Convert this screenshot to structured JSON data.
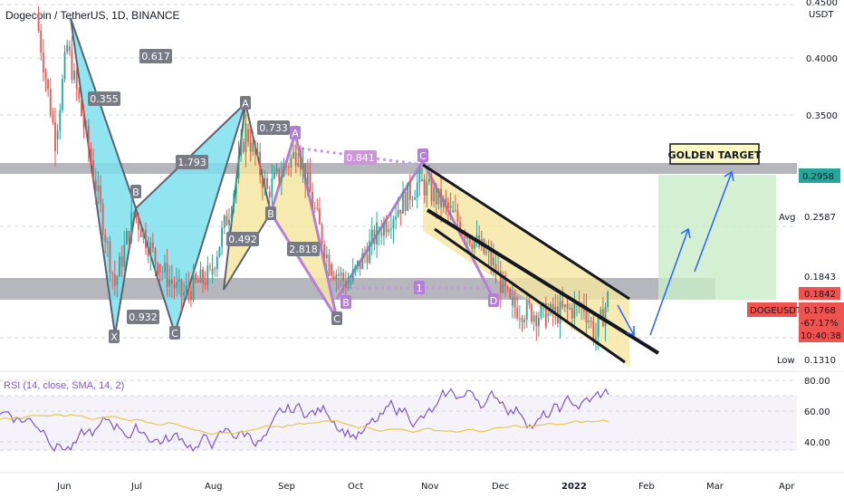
{
  "header": {
    "title": "Dogecoin / TetherUS, 1D, BINANCE"
  },
  "price_axis": {
    "currency": "USDT",
    "ticks": [
      "0.4500",
      "0.4000",
      "0.3500",
      "0.2958",
      "0.2587",
      "0.1843",
      "0.1842",
      "0.1768",
      "0.1310"
    ]
  },
  "price_tags": {
    "top": "0.2958",
    "avg_label": "Avg",
    "avg": "0.2587",
    "p1": "0.1843",
    "p2": "0.1842",
    "symbol": "DOGEUSDT",
    "last": "0.1768",
    "change": "-67.17%",
    "countdown": "10:40:38",
    "low_label": "Low",
    "low": "0.1310"
  },
  "time_axis": [
    "Jun",
    "Jul",
    "Aug",
    "Sep",
    "Oct",
    "Nov",
    "Dec",
    "2022",
    "Feb",
    "Mar",
    "Apr"
  ],
  "rsi": {
    "label": "RSI (14, close, SMA, 14, 2)",
    "ticks": [
      "80.00",
      "60.00",
      "40.00"
    ]
  },
  "annotations": {
    "golden_target": "GOLDEN TARGET",
    "ratios": [
      "0.617",
      "0.355",
      "1.793",
      "0.733",
      "0.841",
      "0.492",
      "2.818",
      "0.932"
    ],
    "points": [
      "X",
      "A",
      "B",
      "C",
      "D",
      "1"
    ]
  },
  "colors": {
    "up": "#26a69a",
    "down": "#ef5350",
    "bat": "#7ee0ee",
    "harmonic": "#f5e6a0",
    "pattern_purple": "#b47fd6",
    "zone": "#787b86",
    "target": "#c8ecc8"
  },
  "chart_data": {
    "type": "candlestick",
    "title": "Dogecoin / TetherUS, 1D, BINANCE",
    "y_range": [
      0.12,
      0.46
    ],
    "x_labels": [
      "Jun",
      "Jul",
      "Aug",
      "Sep",
      "Oct",
      "Nov",
      "Dec",
      "2022",
      "Feb",
      "Mar",
      "Apr"
    ],
    "price_path": [
      {
        "date": "2021-05-20",
        "close": 0.45
      },
      {
        "date": "2021-05-28",
        "close": 0.33
      },
      {
        "date": "2021-06-02",
        "close": 0.42
      },
      {
        "date": "2021-06-12",
        "close": 0.31
      },
      {
        "date": "2021-06-22",
        "close": 0.19
      },
      {
        "date": "2021-06-30",
        "close": 0.26
      },
      {
        "date": "2021-07-10",
        "close": 0.21
      },
      {
        "date": "2021-07-20",
        "close": 0.18
      },
      {
        "date": "2021-08-01",
        "close": 0.2
      },
      {
        "date": "2021-08-10",
        "close": 0.27
      },
      {
        "date": "2021-08-16",
        "close": 0.34
      },
      {
        "date": "2021-08-25",
        "close": 0.28
      },
      {
        "date": "2021-09-07",
        "close": 0.32
      },
      {
        "date": "2021-09-20",
        "close": 0.21
      },
      {
        "date": "2021-09-28",
        "close": 0.19
      },
      {
        "date": "2021-10-10",
        "close": 0.24
      },
      {
        "date": "2021-10-28",
        "close": 0.29
      },
      {
        "date": "2021-11-10",
        "close": 0.26
      },
      {
        "date": "2021-11-28",
        "close": 0.21
      },
      {
        "date": "2021-12-05",
        "close": 0.17
      },
      {
        "date": "2021-12-20",
        "close": 0.16
      },
      {
        "date": "2022-01-05",
        "close": 0.17
      },
      {
        "date": "2022-01-10",
        "close": 0.14
      },
      {
        "date": "2022-01-15",
        "close": 0.1768
      }
    ],
    "horizontal_levels": [
      0.45,
      0.4,
      0.35,
      0.2958,
      0.2587,
      0.1843,
      0.1842,
      0.1768,
      0.131
    ],
    "rsi_ticks": [
      80,
      60,
      40
    ]
  }
}
